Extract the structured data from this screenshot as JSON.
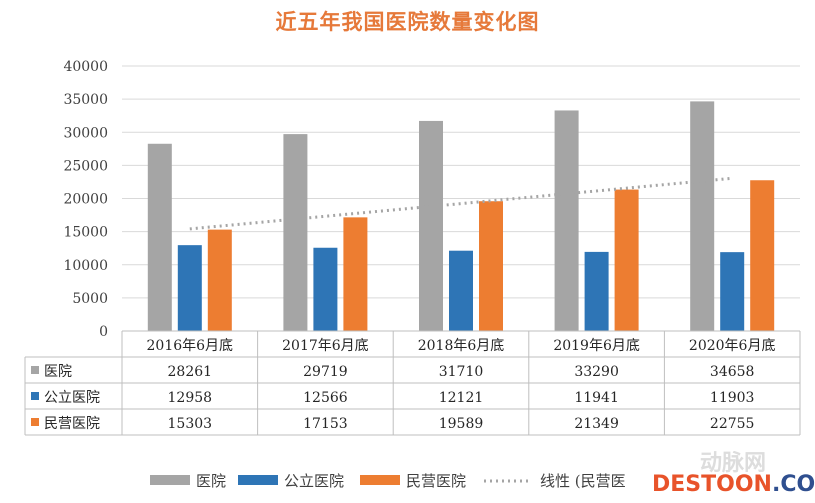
{
  "chart_data": {
    "type": "bar",
    "title": "近五年我国医院数量变化图",
    "categories": [
      "2016年6月底",
      "2017年6月底",
      "2018年6月底",
      "2019年6月底",
      "2020年6月底"
    ],
    "series": [
      {
        "name": "医院",
        "color": "#a5a5a5",
        "values": [
          28261,
          29719,
          31710,
          33290,
          34658
        ]
      },
      {
        "name": "公立医院",
        "color": "#2e75b6",
        "values": [
          12958,
          12566,
          12121,
          11941,
          11903
        ]
      },
      {
        "name": "民营医院",
        "color": "#ed7d31",
        "values": [
          15303,
          17153,
          19589,
          21349,
          22755
        ]
      }
    ],
    "trendline": {
      "name": "线性 (民营医",
      "series": "民营医院",
      "type": "linear",
      "color": "#a5a5a5"
    },
    "yticks": [
      0,
      5000,
      10000,
      15000,
      20000,
      25000,
      30000,
      35000,
      40000
    ],
    "ylim": [
      0,
      40000
    ],
    "gridlines": true,
    "data_table": true,
    "legend_position": "bottom"
  },
  "watermark": {
    "text": "DESTOON.COM",
    "part1": "DESTOON",
    "part2": ".COM",
    "faint": "动脉网"
  }
}
